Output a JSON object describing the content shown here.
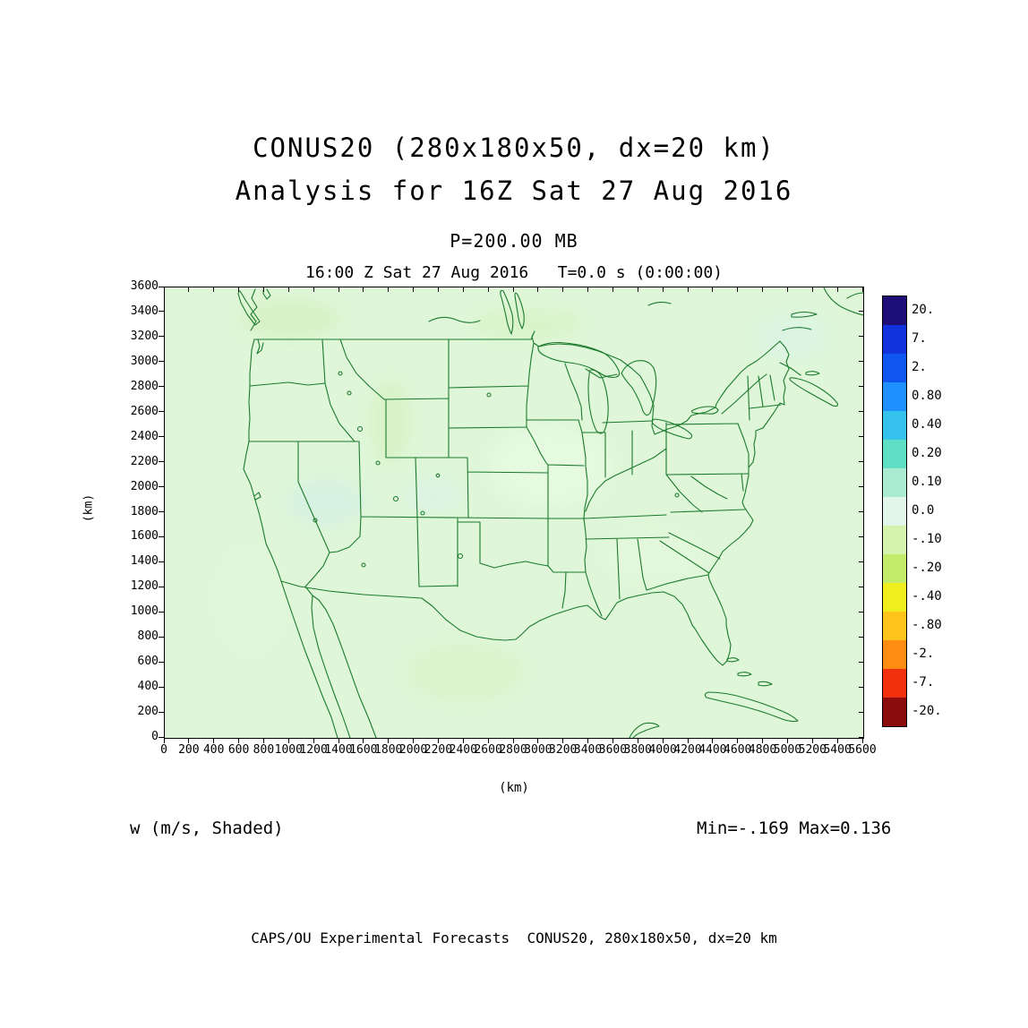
{
  "title": {
    "line1": "CONUS20 (280x180x50, dx=20 km)",
    "line2": "Analysis for 16Z Sat 27 Aug 2016"
  },
  "subtitle": "P=200.00 MB",
  "plot_header": "16:00 Z Sat 27 Aug 2016   T=0.0 s (0:00:00)",
  "field_label": "w (m/s, Shaded)",
  "stats": "Min=-.169 Max=0.136",
  "footer": "CAPS/OU Experimental Forecasts  CONUS20, 280x180x50, dx=20 km",
  "axes": {
    "x_label": "(km)",
    "y_label": "(km)",
    "x_max": 5600,
    "y_max": 3600,
    "x_ticks": [
      0,
      200,
      400,
      600,
      800,
      1000,
      1200,
      1400,
      1600,
      1800,
      2000,
      2200,
      2400,
      2600,
      2800,
      3000,
      3200,
      3400,
      3600,
      3800,
      4000,
      4200,
      4400,
      4600,
      4800,
      5000,
      5200,
      5400,
      5600
    ],
    "y_ticks": [
      0,
      200,
      400,
      600,
      800,
      1000,
      1200,
      1400,
      1600,
      1800,
      2000,
      2200,
      2400,
      2600,
      2800,
      3000,
      3200,
      3400,
      3600
    ]
  },
  "colorbar": {
    "labels": [
      "20.",
      "7.",
      "2.",
      "0.80",
      "0.40",
      "0.20",
      "0.10",
      "0.0",
      "-.10",
      "-.20",
      "-.40",
      "-.80",
      "-2.",
      "-7.",
      "-20."
    ],
    "colors": [
      "#1e0e78",
      "#1133dd",
      "#0f55f0",
      "#1e90ff",
      "#35c3ee",
      "#5fe0c4",
      "#a9ecd2",
      "#e2f7e9",
      "#d6f3ae",
      "#c3ec6a",
      "#f0ee1e",
      "#ffc41c",
      "#ff8c12",
      "#f2300e",
      "#8a0c0c"
    ]
  },
  "colors": {
    "map_background": "#dff7d8",
    "map_line": "#1b7a2e",
    "frame": "#000000"
  },
  "chart_data": {
    "type": "heatmap",
    "title": "CONUS20 (280x180x50, dx=20 km) Analysis for 16Z Sat 27 Aug 2016",
    "variable": "w (m/s, Shaded)",
    "level": "P=200.00 MB",
    "valid_time": "16:00 Z Sat 27 Aug 2016",
    "forecast_time": "T=0.0 s (0:00:00)",
    "xlabel": "(km)",
    "ylabel": "(km)",
    "xlim": [
      0,
      5600
    ],
    "ylim": [
      0,
      3600
    ],
    "x_tick_step": 200,
    "y_tick_step": 200,
    "grid": false,
    "legend_position": "right-colorbar",
    "min": -0.169,
    "max": 0.136,
    "colorbar_levels": [
      20,
      7,
      2,
      0.8,
      0.4,
      0.2,
      0.1,
      0.0,
      -0.1,
      -0.2,
      -0.4,
      -0.8,
      -2,
      -7,
      -20
    ],
    "description": "Vertical velocity w shaded over a CONUS map overlay (state and coastal boundaries in dark green); nearly the entire domain lies in the pale near-zero band with faint patches between -0.169 and 0.136 m/s."
  }
}
